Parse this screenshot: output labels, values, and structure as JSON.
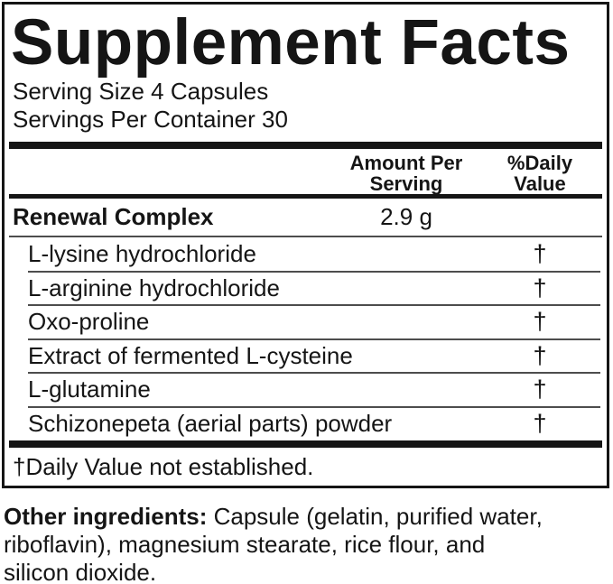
{
  "supplement_facts": {
    "title": "Supplement Facts",
    "serving_size": "Serving Size 4 Capsules",
    "servings_per_container": "Servings Per Container 30",
    "columns": {
      "amount_line1": "Amount Per",
      "amount_line2": "Serving",
      "dv_line1": "%Daily",
      "dv_line2": "Value"
    },
    "complex": {
      "name": "Renewal Complex",
      "amount": "2.9 g"
    },
    "ingredients": [
      {
        "name": "L-lysine hydrochloride",
        "dv": "†"
      },
      {
        "name": "L-arginine hydrochloride",
        "dv": "†"
      },
      {
        "name": "Oxo-proline",
        "dv": "†"
      },
      {
        "name": "Extract of fermented L-cysteine",
        "dv": "†"
      },
      {
        "name": "L-glutamine",
        "dv": "†"
      },
      {
        "name": "Schizonepeta (aerial parts) powder",
        "dv": "†"
      }
    ],
    "footnote": "†Daily Value not established."
  },
  "other_ingredients": {
    "label": "Other ingredients:",
    "line1_rest": " Capsule (gelatin, purified water,",
    "line2": "riboflavin), magnesium stearate, rice flour, and",
    "line3": "silicon dioxide."
  },
  "colors": {
    "text": "#151515",
    "border": "#151515",
    "thick_bar": "#151515",
    "thin_rule": "#4d4d4d",
    "background": "#ffffff"
  }
}
